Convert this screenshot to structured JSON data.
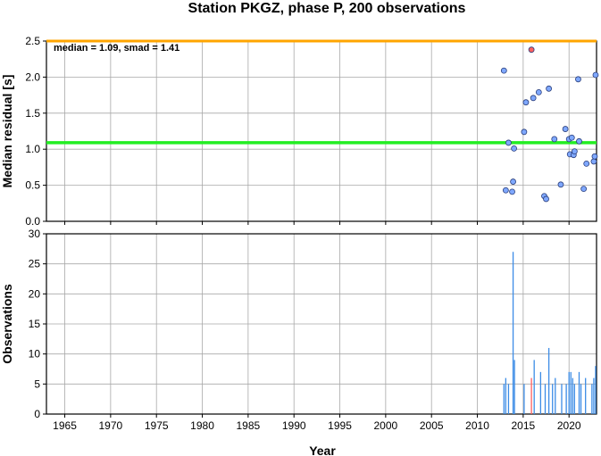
{
  "chart_data": {
    "type": "scatter",
    "title": "Station PKGZ, phase P, 200 observations",
    "xlabel": "Year",
    "xlim": [
      1963,
      2023
    ],
    "x_ticks": [
      1965,
      1970,
      1975,
      1980,
      1985,
      1990,
      1995,
      2000,
      2005,
      2010,
      2015,
      2020
    ],
    "grid": true,
    "colors": {
      "points": "#7fa8ff",
      "outlier": "#ff6060",
      "bars": "#3c8ce6",
      "bar_highlight": "#ff6060",
      "median_line": "#22ee22",
      "limit_line": "#ffa500"
    },
    "panels": [
      {
        "type": "scatter",
        "ylabel": "Median residual [s]",
        "ylim": [
          0,
          2.5
        ],
        "y_ticks": [
          "0.0",
          "0.5",
          "1.0",
          "1.5",
          "2.0",
          "2.5"
        ],
        "annotation": "median = 1.09, smad = 1.41",
        "median": 1.09,
        "upper_limit": 2.5,
        "points": [
          {
            "x": 2012.9,
            "y": 2.09
          },
          {
            "x": 2013.1,
            "y": 0.43
          },
          {
            "x": 2013.4,
            "y": 1.09
          },
          {
            "x": 2013.8,
            "y": 0.41
          },
          {
            "x": 2013.9,
            "y": 0.55
          },
          {
            "x": 2014.0,
            "y": 1.01
          },
          {
            "x": 2015.1,
            "y": 1.24
          },
          {
            "x": 2015.3,
            "y": 1.65
          },
          {
            "x": 2015.9,
            "y": 2.38,
            "outlier": true
          },
          {
            "x": 2016.1,
            "y": 1.71
          },
          {
            "x": 2016.7,
            "y": 1.79
          },
          {
            "x": 2017.3,
            "y": 0.35
          },
          {
            "x": 2017.5,
            "y": 0.31
          },
          {
            "x": 2017.8,
            "y": 1.84
          },
          {
            "x": 2018.4,
            "y": 1.14
          },
          {
            "x": 2019.1,
            "y": 0.51
          },
          {
            "x": 2019.6,
            "y": 1.28
          },
          {
            "x": 2020.0,
            "y": 1.14
          },
          {
            "x": 2020.1,
            "y": 0.93
          },
          {
            "x": 2020.3,
            "y": 1.16
          },
          {
            "x": 2020.5,
            "y": 0.92
          },
          {
            "x": 2020.6,
            "y": 0.97
          },
          {
            "x": 2021.0,
            "y": 1.97
          },
          {
            "x": 2021.1,
            "y": 1.11
          },
          {
            "x": 2021.6,
            "y": 0.45
          },
          {
            "x": 2021.9,
            "y": 0.8
          },
          {
            "x": 2022.7,
            "y": 0.83
          },
          {
            "x": 2022.8,
            "y": 0.9
          },
          {
            "x": 2022.9,
            "y": 2.03
          }
        ]
      },
      {
        "type": "bar",
        "ylabel": "Observations",
        "ylim": [
          0,
          30
        ],
        "y_ticks": [
          "0",
          "5",
          "10",
          "15",
          "20",
          "25",
          "30"
        ],
        "bars": [
          {
            "x": 2012.9,
            "y": 5
          },
          {
            "x": 2013.1,
            "y": 6
          },
          {
            "x": 2013.4,
            "y": 5
          },
          {
            "x": 2013.9,
            "y": 27
          },
          {
            "x": 2014.05,
            "y": 9
          },
          {
            "x": 2015.1,
            "y": 5
          },
          {
            "x": 2015.9,
            "y": 6,
            "highlight": true
          },
          {
            "x": 2016.2,
            "y": 9
          },
          {
            "x": 2016.9,
            "y": 7
          },
          {
            "x": 2017.4,
            "y": 5
          },
          {
            "x": 2017.8,
            "y": 11
          },
          {
            "x": 2018.2,
            "y": 5
          },
          {
            "x": 2018.5,
            "y": 6
          },
          {
            "x": 2019.2,
            "y": 5
          },
          {
            "x": 2019.7,
            "y": 5
          },
          {
            "x": 2020.0,
            "y": 7
          },
          {
            "x": 2020.2,
            "y": 7
          },
          {
            "x": 2020.4,
            "y": 6
          },
          {
            "x": 2020.6,
            "y": 5
          },
          {
            "x": 2021.1,
            "y": 7
          },
          {
            "x": 2021.3,
            "y": 5
          },
          {
            "x": 2021.8,
            "y": 6
          },
          {
            "x": 2022.5,
            "y": 5
          },
          {
            "x": 2022.7,
            "y": 6
          },
          {
            "x": 2022.9,
            "y": 8
          }
        ]
      }
    ]
  }
}
